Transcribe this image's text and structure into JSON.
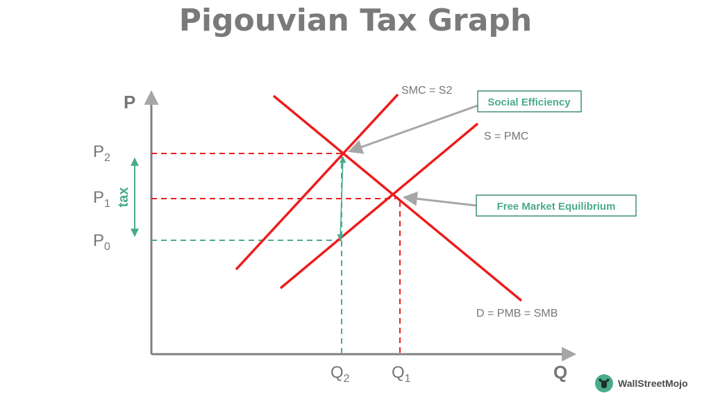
{
  "title": "Pigouvian Tax Graph",
  "axes": {
    "y_label": "P",
    "x_label": "Q"
  },
  "price_labels": {
    "p2": {
      "main": "P",
      "sub": "2"
    },
    "p1": {
      "main": "P",
      "sub": "1"
    },
    "p0": {
      "main": "P",
      "sub": "0"
    }
  },
  "quantity_labels": {
    "q2": {
      "main": "Q",
      "sub": "2"
    },
    "q1": {
      "main": "Q",
      "sub": "1"
    }
  },
  "tax_label": "tax",
  "curves": {
    "smc": "SMC = S2",
    "pmc": "S = PMC",
    "demand": "D = PMB = SMB"
  },
  "callouts": {
    "social_efficiency": "Social Efficiency",
    "free_market": "Free Market Equilibrium"
  },
  "colors": {
    "curve": "#ee1c1c",
    "accent": "#4aaa8c",
    "text": "#767676"
  },
  "brand": {
    "name": "WallStreetMojo"
  }
}
